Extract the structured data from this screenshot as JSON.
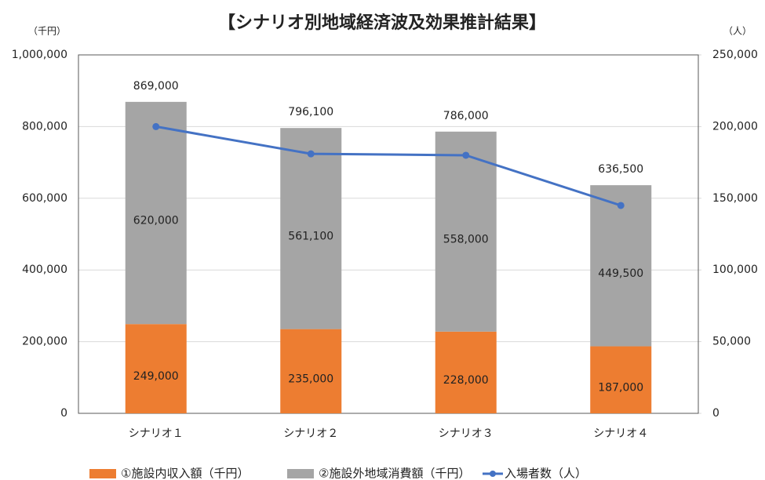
{
  "chart_data": {
    "type": "stacked-bar-line",
    "title": "【シナリオ別地域経済波及効果推計結果】",
    "y_label": "（千円）",
    "y2_label": "（人）",
    "categories": [
      "シナリオ１",
      "シナリオ２",
      "シナリオ３",
      "シナリオ４"
    ],
    "series": [
      {
        "name": "①施設内収入額（千円）",
        "color": "#ed7d31",
        "kind": "bar",
        "values": [
          249000,
          235000,
          228000,
          187000
        ],
        "value_labels": [
          "249,000",
          "235,000",
          "228,000",
          "187,000"
        ]
      },
      {
        "name": "②施設外地域消費額（千円）",
        "color": "#a5a5a5",
        "kind": "bar",
        "values": [
          620000,
          561100,
          558000,
          449500
        ],
        "value_labels": [
          "620,000",
          "561,100",
          "558,000",
          "449,500"
        ]
      },
      {
        "name": "入場者数（人）",
        "color": "#4472c4",
        "kind": "line",
        "axis": "y2",
        "values": [
          200000,
          181000,
          180000,
          145000
        ]
      }
    ],
    "totals": [
      869000,
      796100,
      786000,
      636500
    ],
    "total_labels": [
      "869,000",
      "796,100",
      "786,000",
      "636,500"
    ],
    "ylim": [
      0,
      1000000
    ],
    "yticks": [
      0,
      {
        "value": 200000,
        "label": "200,000"
      },
      {
        "value": 400000,
        "label": "400,000"
      },
      {
        "value": 600000,
        "label": "600,000"
      },
      {
        "value": 800000,
        "label": "800,000"
      },
      {
        "value": 1000000,
        "label": "1,000,000"
      }
    ],
    "y2lim": [
      0,
      250000
    ],
    "y2ticks": [
      0,
      {
        "value": 50000,
        "label": "50,000"
      },
      {
        "value": 100000,
        "label": "100,000"
      },
      {
        "value": 150000,
        "label": "150,000"
      },
      {
        "value": 200000,
        "label": "200,000"
      },
      {
        "value": 250000,
        "label": "250,000"
      }
    ],
    "grid": true,
    "legend": "bottom"
  }
}
